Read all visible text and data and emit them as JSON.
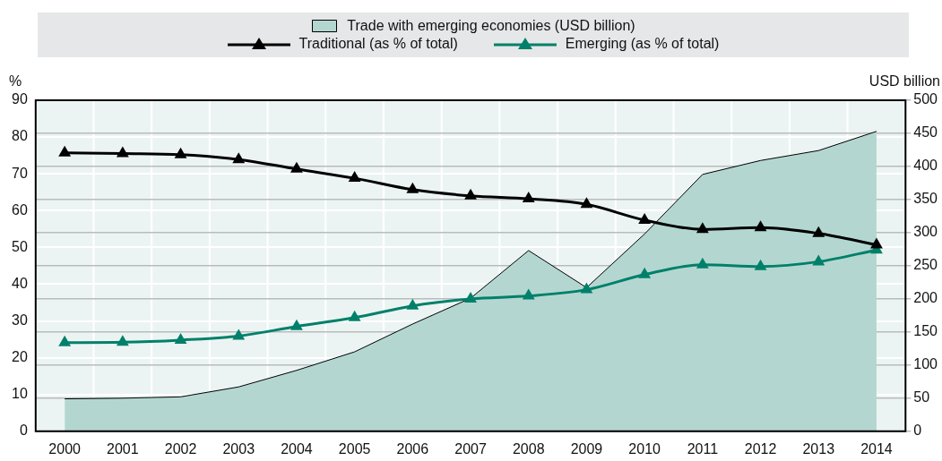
{
  "chart_data": {
    "type": "line",
    "ylabel": "%",
    "y2label": "USD billion",
    "categories": [
      "2000",
      "2001",
      "2002",
      "2003",
      "2004",
      "2005",
      "2006",
      "2007",
      "2008",
      "2009",
      "2010",
      "2011",
      "2012",
      "2013",
      "2014"
    ],
    "series": [
      {
        "name": "Trade with emerging economies (USD billion)",
        "type": "area",
        "axis": "y2",
        "color": "#b3d7d0",
        "marker": "none",
        "values": [
          49,
          50,
          52,
          67,
          92,
          120,
          162,
          201,
          273,
          217,
          298,
          388,
          409,
          424,
          453
        ]
      },
      {
        "name": "Traditional (as % of total)",
        "color": "#000000",
        "marker": "triangle",
        "values": [
          75.7,
          75.5,
          75.2,
          73.9,
          71.3,
          68.8,
          65.7,
          64.0,
          63.2,
          61.7,
          57.4,
          54.9,
          55.4,
          53.8,
          50.7
        ]
      },
      {
        "name": "Emerging (as % of total)",
        "color": "#00806a",
        "marker": "triangle",
        "values": [
          24.1,
          24.2,
          24.8,
          25.9,
          28.5,
          30.9,
          34.1,
          36.0,
          36.8,
          38.5,
          42.6,
          45.3,
          44.8,
          46.1,
          49.3
        ]
      }
    ],
    "ylim": [
      0,
      90
    ],
    "yticks": [
      0,
      10,
      20,
      30,
      40,
      50,
      60,
      70,
      80,
      90
    ],
    "y2lim": [
      0,
      500
    ],
    "y2ticks": [
      0,
      50,
      100,
      150,
      200,
      250,
      300,
      350,
      400,
      450,
      500
    ],
    "grid": true,
    "legend": "top",
    "line_style": "solid"
  }
}
